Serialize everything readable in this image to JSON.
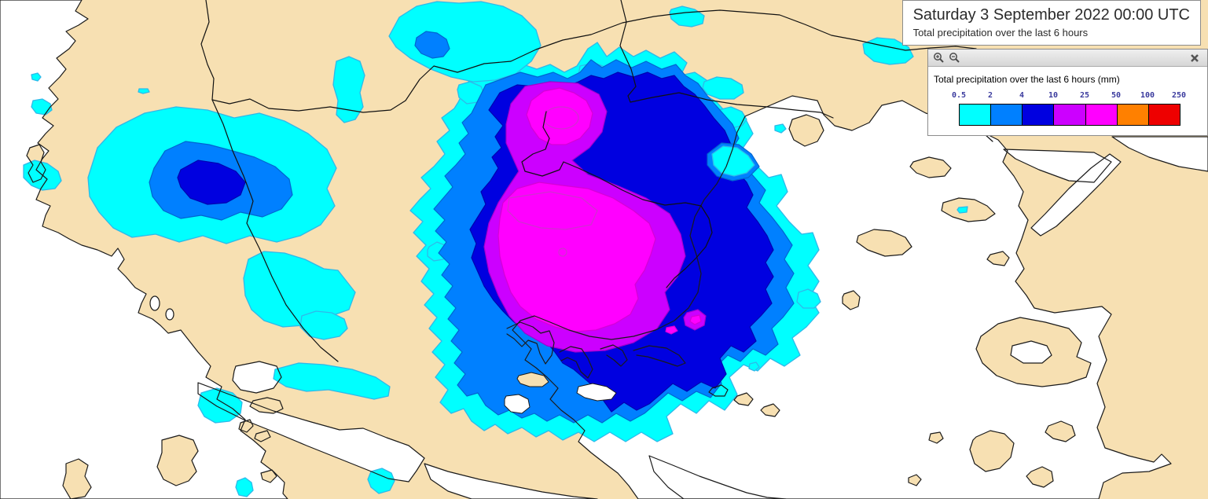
{
  "header": {
    "date_title": "Saturday 3 September 2022 00:00 UTC",
    "subtitle": "Total precipitation over the last 6 hours"
  },
  "legend": {
    "title": "Total precipitation over the last 6 hours (mm)",
    "unit": "mm",
    "tick_labels": [
      "0.5",
      "2",
      "4",
      "10",
      "25",
      "50",
      "100",
      "250"
    ],
    "scale_colors": [
      "#00ffff",
      "#0080ff",
      "#0000e0",
      "#cc00ff",
      "#ff00ff",
      "#ff8000",
      "#ee0000"
    ],
    "toolbar_icons": {
      "zoom_in": "zoom-in-magnifier",
      "zoom_out": "zoom-out-magnifier",
      "close": "close-x"
    }
  },
  "map": {
    "region": "Balkans / Aegean Sea",
    "land_color": "#f7e0b2",
    "sea_color": "#ffffff",
    "coastline_color": "#1a1a1a",
    "precip_bands_mm": [
      {
        "range": "0.5-2",
        "color": "#00ffff"
      },
      {
        "range": "2-4",
        "color": "#0080ff"
      },
      {
        "range": "4-10",
        "color": "#0000e0"
      },
      {
        "range": "10-25",
        "color": "#cc00ff"
      },
      {
        "range": "25-50",
        "color": "#ff00ff"
      },
      {
        "range": "50-100",
        "color": "#ff8000"
      },
      {
        "range": "100-250",
        "color": "#ee0000"
      }
    ]
  }
}
